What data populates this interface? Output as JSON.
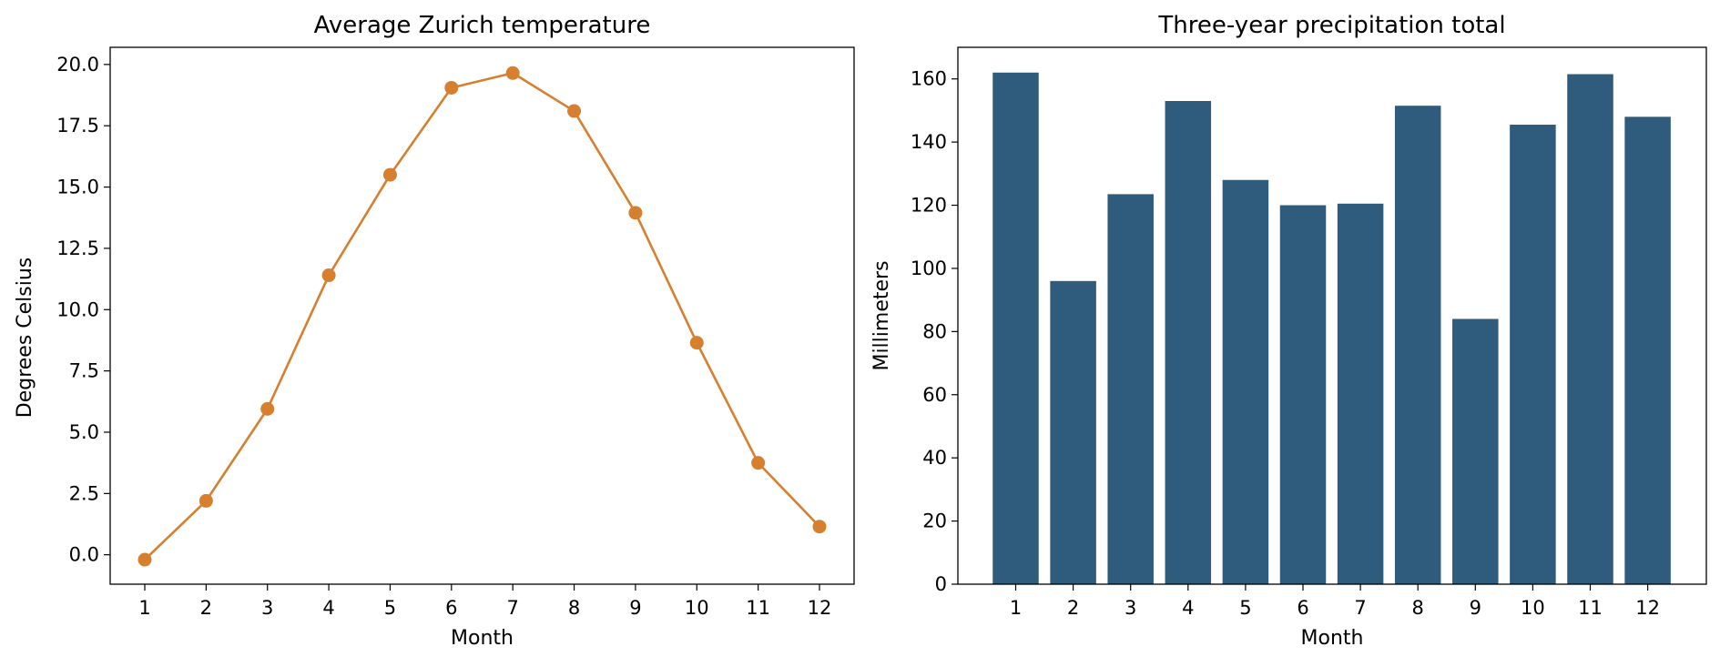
{
  "colors": {
    "line": "#d6802f",
    "bar": "#2f5b7c",
    "axes": "#000000",
    "background": "#ffffff"
  },
  "chart_data": [
    {
      "type": "line",
      "title": "Average Zurich temperature",
      "xlabel": "Month",
      "ylabel": "Degrees Celsius",
      "x": [
        1,
        2,
        3,
        4,
        5,
        6,
        7,
        8,
        9,
        10,
        11,
        12
      ],
      "x_tick_labels": [
        "1",
        "2",
        "3",
        "4",
        "5",
        "6",
        "7",
        "8",
        "9",
        "10",
        "11",
        "12"
      ],
      "values": [
        -0.2,
        2.2,
        5.95,
        11.4,
        15.5,
        19.05,
        19.65,
        18.1,
        13.95,
        8.65,
        3.75,
        1.15
      ],
      "ylim": [
        -1.2,
        20.7
      ],
      "y_ticks": [
        0.0,
        2.5,
        5.0,
        7.5,
        10.0,
        12.5,
        15.0,
        17.5,
        20.0
      ],
      "y_tick_labels": [
        "0.0",
        "2.5",
        "5.0",
        "7.5",
        "10.0",
        "12.5",
        "15.0",
        "17.5",
        "20.0"
      ],
      "marker": "circle",
      "grid": false,
      "legend": false
    },
    {
      "type": "bar",
      "title": "Three-year precipitation total",
      "xlabel": "Month",
      "ylabel": "Millimeters",
      "categories": [
        "1",
        "2",
        "3",
        "4",
        "5",
        "6",
        "7",
        "8",
        "9",
        "10",
        "11",
        "12"
      ],
      "values": [
        162,
        96,
        123.5,
        153,
        128,
        120,
        120.5,
        151.5,
        84,
        145.5,
        161.5,
        148
      ],
      "ylim": [
        0,
        170
      ],
      "y_ticks": [
        0,
        20,
        40,
        60,
        80,
        100,
        120,
        140,
        160
      ],
      "y_tick_labels": [
        "0",
        "20",
        "40",
        "60",
        "80",
        "100",
        "120",
        "140",
        "160"
      ],
      "grid": false,
      "legend": false
    }
  ]
}
